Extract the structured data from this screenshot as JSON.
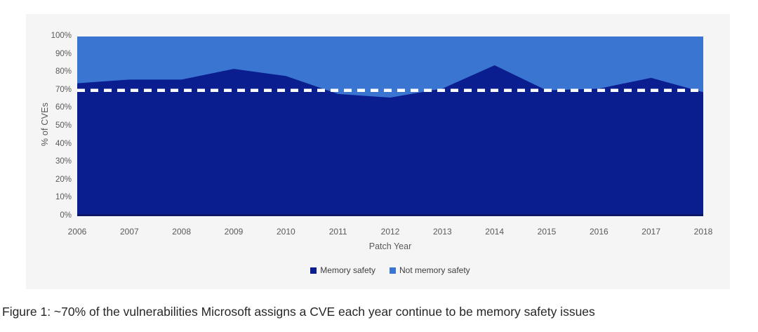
{
  "figure": {
    "caption": "Figure 1: ~70% of the vulnerabilities Microsoft assigns a CVE each year continue to be memory safety issues"
  },
  "chart_data": {
    "type": "area",
    "stacked_to_100_percent": true,
    "x": [
      2006,
      2007,
      2008,
      2009,
      2010,
      2011,
      2012,
      2013,
      2014,
      2015,
      2016,
      2017,
      2018
    ],
    "x_tick_labels": [
      "2006",
      "2007",
      "2008",
      "2009",
      "2010",
      "2011",
      "2012",
      "2013",
      "2014",
      "2015",
      "2016",
      "2017",
      "2018"
    ],
    "series": [
      {
        "name": "Memory safety",
        "color": "#0b1e8f",
        "values": [
          74,
          76,
          76,
          82,
          78,
          68,
          66,
          71,
          84,
          70,
          71,
          77,
          69
        ]
      },
      {
        "name": "Not memory safety",
        "color": "#3a76d1",
        "values": [
          26,
          24,
          24,
          18,
          22,
          32,
          34,
          29,
          16,
          30,
          29,
          23,
          31
        ]
      }
    ],
    "reference_line": {
      "value": 70,
      "style": "dashed",
      "color": "#ffffff"
    },
    "baseline_color": "#0a1668",
    "xlabel": "Patch Year",
    "ylabel": "% of CVEs",
    "ylim": [
      0,
      100
    ],
    "y_tick_labels": [
      "100%",
      "90%",
      "80%",
      "70%",
      "60%",
      "50%",
      "40%",
      "30%",
      "20%",
      "10%",
      "0%"
    ],
    "grid": false,
    "legend_position": "bottom"
  }
}
